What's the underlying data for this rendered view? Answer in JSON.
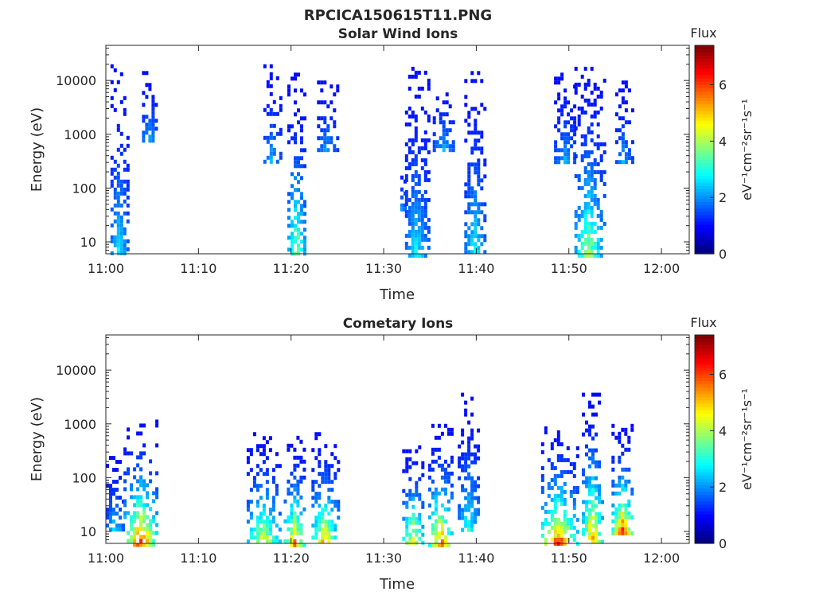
{
  "figure": {
    "title": "RPCICA150615T11.PNG"
  },
  "chart_data": [
    {
      "type": "heatmap",
      "title": "Solar Wind Ions",
      "xlabel": "Time",
      "ylabel": "Energy (eV)",
      "yscale": "log",
      "xlim": [
        "11:00",
        "12:03"
      ],
      "ylim": [
        6,
        45000
      ],
      "x_ticks": [
        "11:00",
        "11:10",
        "11:20",
        "11:30",
        "11:40",
        "11:50",
        "12:00"
      ],
      "y_ticks": [
        "10",
        "100",
        "1000",
        "10000"
      ],
      "colorbar": {
        "title": "Flux",
        "unit": "eV⁻¹cm⁻²sr⁻¹s⁻¹",
        "range": [
          0,
          7.4
        ],
        "ticks": [
          "0",
          "2",
          "4",
          "6"
        ]
      },
      "grid": false,
      "bursts": [
        {
          "t_start": "11:00.5",
          "t_end": "11:02.3",
          "e_low": 6,
          "e_high": 20000,
          "peak_flux": 3.2
        },
        {
          "t_start": "11:03.9",
          "t_end": "11:05.5",
          "e_low": 800,
          "e_high": 15000,
          "peak_flux": 2.6
        },
        {
          "t_start": "11:17.0",
          "t_end": "11:18.8",
          "e_low": 300,
          "e_high": 20000,
          "peak_flux": 2.6
        },
        {
          "t_start": "11:19.6",
          "t_end": "11:21.6",
          "e_low": 6,
          "e_high": 14000,
          "peak_flux": 4.6
        },
        {
          "t_start": "11:22.8",
          "t_end": "11:24.9",
          "e_low": 500,
          "e_high": 10000,
          "peak_flux": 2.5
        },
        {
          "t_start": "11:31.8",
          "t_end": "11:32.4",
          "e_low": 40,
          "e_high": 400,
          "peak_flux": 2.7
        },
        {
          "t_start": "11:32.3",
          "t_end": "11:34.8",
          "e_low": 6,
          "e_high": 18000,
          "peak_flux": 3.1
        },
        {
          "t_start": "11:35.3",
          "t_end": "11:37.7",
          "e_low": 500,
          "e_high": 10000,
          "peak_flux": 2.5
        },
        {
          "t_start": "11:38.7",
          "t_end": "11:41.0",
          "e_low": 6,
          "e_high": 15000,
          "peak_flux": 3.2
        },
        {
          "t_start": "11:48.4",
          "t_end": "11:50.8",
          "e_low": 300,
          "e_high": 14000,
          "peak_flux": 2.5
        },
        {
          "t_start": "11:50.6",
          "t_end": "11:53.7",
          "e_low": 6,
          "e_high": 18000,
          "peak_flux": 4.6
        },
        {
          "t_start": "11:55.0",
          "t_end": "11:56.8",
          "e_low": 300,
          "e_high": 10000,
          "peak_flux": 2.5
        }
      ]
    },
    {
      "type": "heatmap",
      "title": "Cometary Ions",
      "xlabel": "Time",
      "ylabel": "Energy (eV)",
      "yscale": "log",
      "xlim": [
        "11:00",
        "12:03"
      ],
      "ylim": [
        6,
        45000
      ],
      "x_ticks": [
        "11:00",
        "11:10",
        "11:20",
        "11:30",
        "11:40",
        "11:50",
        "12:00"
      ],
      "y_ticks": [
        "10",
        "100",
        "1000",
        "10000"
      ],
      "colorbar": {
        "title": "Flux",
        "unit": "eV⁻¹cm⁻²sr⁻¹s⁻¹",
        "range": [
          0,
          7.4
        ],
        "ticks": [
          "0",
          "2",
          "4",
          "6"
        ]
      },
      "grid": false,
      "bursts": [
        {
          "t_start": "11:00.0",
          "t_end": "11:01.9",
          "e_low": 10,
          "e_high": 300,
          "peak_flux": 3.0
        },
        {
          "t_start": "11:01.9",
          "t_end": "11:05.6",
          "e_low": 6,
          "e_high": 1200,
          "peak_flux": 7.2
        },
        {
          "t_start": "11:15.2",
          "t_end": "11:18.8",
          "e_low": 6,
          "e_high": 700,
          "peak_flux": 5.5
        },
        {
          "t_start": "11:19.2",
          "t_end": "11:21.6",
          "e_low": 6,
          "e_high": 600,
          "peak_flux": 6.5
        },
        {
          "t_start": "11:22.2",
          "t_end": "11:25.0",
          "e_low": 6,
          "e_high": 700,
          "peak_flux": 6.2
        },
        {
          "t_start": "11:32.0",
          "t_end": "11:34.4",
          "e_low": 6,
          "e_high": 400,
          "peak_flux": 6.0
        },
        {
          "t_start": "11:34.8",
          "t_end": "11:37.5",
          "e_low": 6,
          "e_high": 1000,
          "peak_flux": 6.8
        },
        {
          "t_start": "11:38.0",
          "t_end": "11:40.4",
          "e_low": 10,
          "e_high": 3800,
          "peak_flux": 3.5
        },
        {
          "t_start": "11:47.0",
          "t_end": "11:50.8",
          "e_low": 6,
          "e_high": 900,
          "peak_flux": 7.3
        },
        {
          "t_start": "11:51.4",
          "t_end": "11:53.7",
          "e_low": 6,
          "e_high": 3800,
          "peak_flux": 6.8
        },
        {
          "t_start": "11:54.6",
          "t_end": "11:57.0",
          "e_low": 10,
          "e_high": 1000,
          "peak_flux": 7.2
        }
      ]
    }
  ]
}
